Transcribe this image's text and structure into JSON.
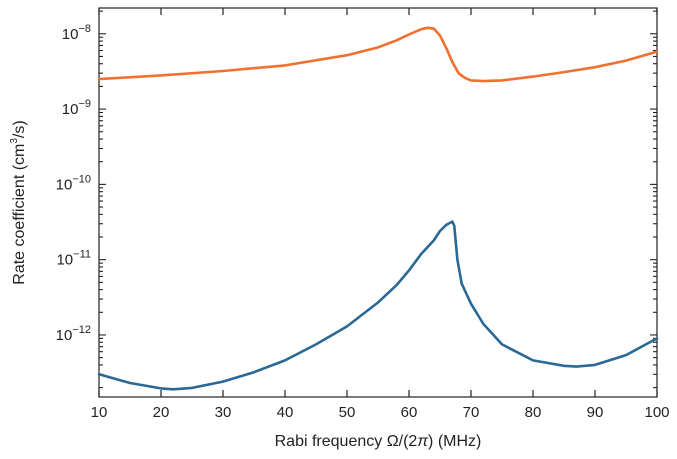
{
  "chart_data": {
    "type": "line",
    "xlabel": "Rabi frequency Ω/(2π) (MHz)",
    "xlabel_parts": {
      "before": "Rabi frequency Ω/(2",
      "pi": "π",
      "after": ") (MHz)"
    },
    "ylabel": "Rate coefficient (cm3/s)",
    "ylabel_parts": {
      "before": "Rate coefficient (cm",
      "sup": "3",
      "after": "/s)"
    },
    "xlim": [
      10,
      100
    ],
    "ylim": [
      1.5e-13,
      2.2e-08
    ],
    "yscale": "log",
    "grid": false,
    "xticks": [
      10,
      20,
      30,
      40,
      50,
      60,
      70,
      80,
      90,
      100
    ],
    "xtick_labels": [
      "10",
      "20",
      "30",
      "40",
      "50",
      "60",
      "70",
      "80",
      "90",
      "100"
    ],
    "yticks": [
      {
        "value": 1e-08,
        "base": "10",
        "exp": "−8"
      },
      {
        "value": 1e-09,
        "base": "10",
        "exp": "−9"
      },
      {
        "value": 1e-10,
        "base": "10",
        "exp": "−10"
      },
      {
        "value": 1e-11,
        "base": "10",
        "exp": "−11"
      },
      {
        "value": 1e-12,
        "base": "10",
        "exp": "−12"
      }
    ],
    "series": [
      {
        "color": "#f07030",
        "x": [
          10,
          20,
          30,
          40,
          50,
          55,
          58,
          60,
          62,
          63,
          64,
          65,
          66,
          67,
          68,
          69,
          70,
          72,
          75,
          80,
          85,
          90,
          95,
          100
        ],
        "y": [
          2.5e-09,
          2.8e-09,
          3.2e-09,
          3.8e-09,
          5.2e-09,
          6.6e-09,
          8.2e-09,
          9.8e-09,
          1.15e-08,
          1.2e-08,
          1.17e-08,
          9.5e-09,
          6.5e-09,
          4.2e-09,
          3e-09,
          2.6e-09,
          2.4e-09,
          2.35e-09,
          2.4e-09,
          2.7e-09,
          3.1e-09,
          3.6e-09,
          4.4e-09,
          5.8e-09
        ]
      },
      {
        "color": "#2a6896",
        "x": [
          10,
          15,
          20,
          22,
          25,
          30,
          35,
          40,
          45,
          50,
          55,
          58,
          60,
          62,
          64,
          65,
          66,
          67,
          67.3,
          67.8,
          68.5,
          70,
          72,
          75,
          80,
          85,
          87,
          90,
          95,
          100
        ],
        "y": [
          3e-13,
          2.3e-13,
          1.95e-13,
          1.9e-13,
          1.98e-13,
          2.4e-13,
          3.2e-13,
          4.6e-13,
          7.5e-13,
          1.3e-12,
          2.7e-12,
          4.6e-12,
          7.2e-12,
          1.2e-11,
          1.8e-11,
          2.4e-11,
          2.9e-11,
          3.2e-11,
          2.8e-11,
          1e-11,
          4.8e-12,
          2.6e-12,
          1.4e-12,
          7.5e-13,
          4.6e-13,
          3.9e-13,
          3.8e-13,
          4e-13,
          5.4e-13,
          9e-13
        ]
      }
    ]
  }
}
